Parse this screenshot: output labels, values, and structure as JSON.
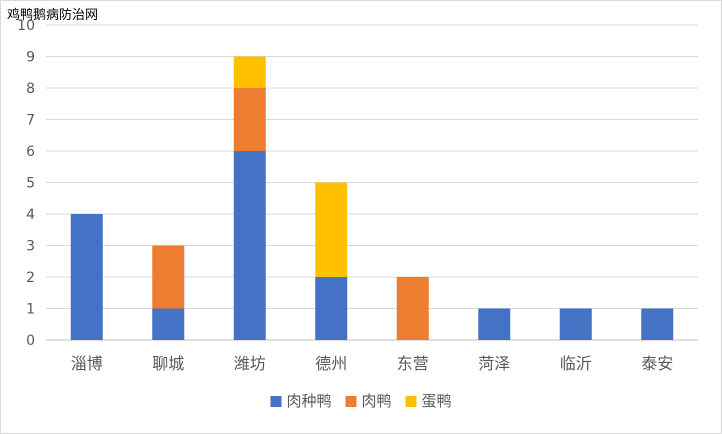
{
  "chart_data": {
    "type": "bar",
    "stacked": true,
    "title": "鸡鸭鹅病防治网",
    "xlabel": "",
    "ylabel": "",
    "ylim": [
      0,
      10
    ],
    "yticks": [
      0,
      1,
      2,
      3,
      4,
      5,
      6,
      7,
      8,
      9,
      10
    ],
    "grid": true,
    "legend_position": "bottom",
    "categories": [
      "淄博",
      "聊城",
      "潍坊",
      "德州",
      "东营",
      "菏泽",
      "临沂",
      "泰安"
    ],
    "series": [
      {
        "name": "肉种鸭",
        "color": "#4472C4",
        "values": [
          4,
          1,
          6,
          2,
          0,
          1,
          1,
          1
        ]
      },
      {
        "name": "肉鸭",
        "color": "#ED7D31",
        "values": [
          0,
          2,
          2,
          0,
          2,
          0,
          0,
          0
        ]
      },
      {
        "name": "蛋鸭",
        "color": "#FFC000",
        "values": [
          0,
          0,
          1,
          3,
          0,
          0,
          0,
          0
        ]
      }
    ]
  }
}
